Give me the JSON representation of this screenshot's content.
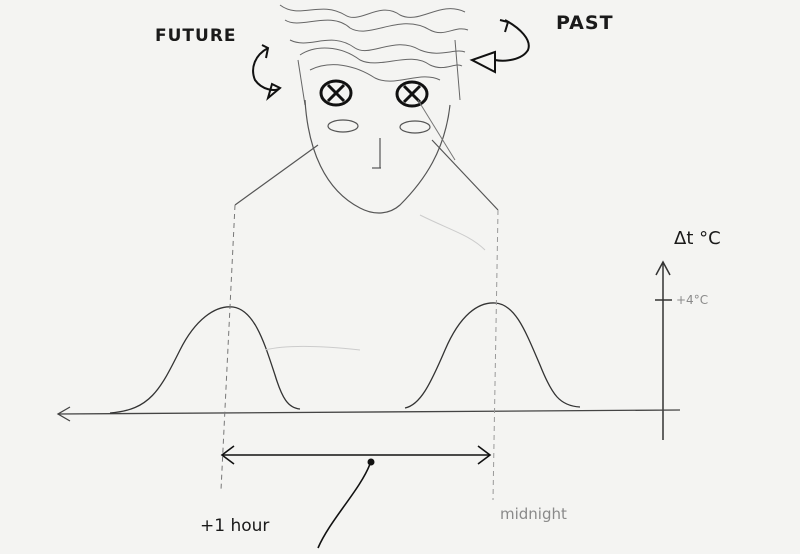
{
  "labels": {
    "future": "FUTURE",
    "past": "PAST",
    "delta_t": "Δt °C",
    "plus_four": "+4°C",
    "plus_one_hour": "+1 hour",
    "midnight": "midnight"
  },
  "colors": {
    "ink": "#1a1a1a",
    "pencil": "#555555",
    "faint": "#9a9a9a",
    "paper": "#f4f4f2"
  },
  "icons": {
    "future_arrow": "curved-arrow-icon",
    "past_arrow": "curved-arrow-icon",
    "eye": "crossed-eye-icon"
  }
}
